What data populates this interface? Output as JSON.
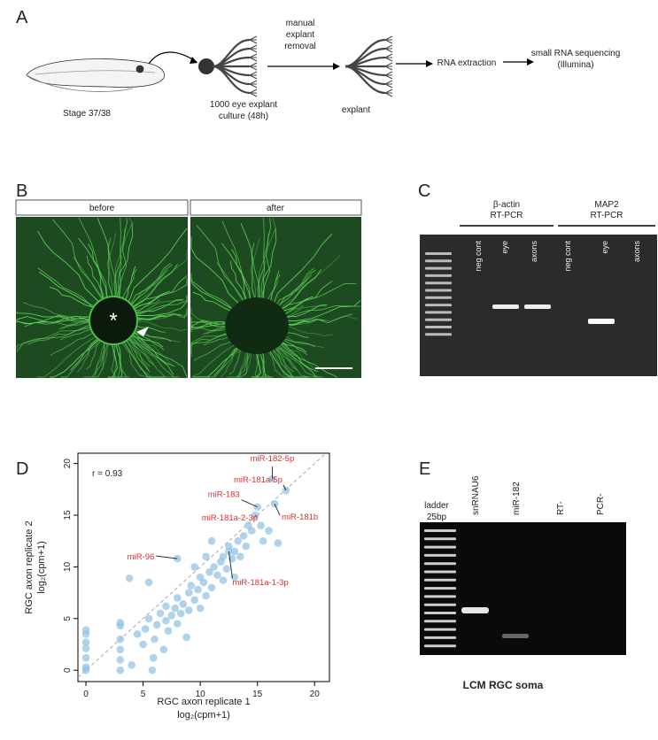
{
  "panel_a": {
    "label": "A",
    "stage": "Stage 37/38",
    "culture": [
      "1000 eye explant",
      "culture (48h)"
    ],
    "removal": [
      "manual",
      "explant",
      "removal"
    ],
    "explant": "explant",
    "extraction": "RNA extraction",
    "sequencing": [
      "small RNA sequencing",
      "(Illumina)"
    ]
  },
  "panel_b": {
    "label": "B",
    "before": "before",
    "after": "after"
  },
  "panel_c": {
    "label": "C",
    "groups": [
      {
        "name": [
          "β-actin",
          "RT-PCR"
        ],
        "lanes": [
          "neg cont",
          "eye",
          "axons"
        ]
      },
      {
        "name": [
          "MAP2",
          "RT-PCR"
        ],
        "lanes": [
          "neg cont",
          "eye",
          "axons"
        ]
      }
    ]
  },
  "chart_data": {
    "type": "scatter",
    "panel_label": "D",
    "stat_label": "r = 0.93",
    "x_label": [
      "RGC axon replicate 1",
      "log₂(cpm+1)"
    ],
    "y_label": [
      "RGC axon replicate 2",
      "log₂(cpm+1)"
    ],
    "color": "#8fc1e3",
    "x": [
      0,
      0,
      0,
      0,
      0,
      0,
      0,
      3,
      3,
      3,
      3,
      3,
      3,
      3.8,
      4,
      4.5,
      5,
      5.2,
      5.5,
      5.8,
      5.9,
      6,
      6.2,
      6.5,
      6.8,
      7,
      7,
      7.2,
      7.5,
      7.8,
      8,
      8,
      8.3,
      8.5,
      8.8,
      9,
      9,
      9.2,
      9.5,
      9.8,
      10,
      10,
      10.3,
      10.5,
      10.8,
      11,
      11.2,
      11.5,
      11.8,
      12,
      12,
      12.3,
      12.5,
      12.8,
      13,
      13,
      13.3,
      13.5,
      13.8,
      14,
      14.2,
      14.5,
      14.8,
      15,
      15.3,
      15.5,
      16,
      16.3,
      16.5,
      16.8,
      17.5,
      8,
      12.5,
      5.5,
      10.5,
      11,
      9.5
    ],
    "values": [
      0,
      0.3,
      1.2,
      2.1,
      2.7,
      3.5,
      3.9,
      0,
      1,
      2,
      3,
      4.3,
      4.6,
      8.9,
      0.5,
      3.5,
      2.5,
      4,
      5,
      0,
      1.2,
      3,
      4.4,
      5.5,
      2,
      4.8,
      6.2,
      3.8,
      5.3,
      6,
      4.5,
      7,
      5.5,
      6.4,
      3.2,
      7.5,
      5.8,
      8.2,
      6.8,
      7.8,
      9,
      6,
      8.5,
      7.2,
      9.5,
      8,
      10,
      9.2,
      10.5,
      8.7,
      11,
      9.8,
      12,
      10.8,
      11.5,
      9,
      12.5,
      11,
      13,
      12,
      14,
      13.5,
      15,
      15.8,
      14,
      12.5,
      13.5,
      18.5,
      16.1,
      12.3,
      17.4,
      10.8,
      11.5,
      8.5,
      11,
      12.5,
      10
    ],
    "annotations": [
      {
        "text": "miR-182-5p",
        "x": 16.3,
        "y": 18.5
      },
      {
        "text": "miR-181a-5p",
        "x": 17.5,
        "y": 17.4
      },
      {
        "text": "miR-183",
        "x": 15,
        "y": 15.8
      },
      {
        "text": "miR-181a-2-3p",
        "x": 14.8,
        "y": 15
      },
      {
        "text": "miR-181b",
        "x": 16.5,
        "y": 16.1
      },
      {
        "text": "miR-96",
        "x": 8,
        "y": 10.8
      },
      {
        "text": "miR-181a-1-3p",
        "x": 12.5,
        "y": 11.5
      }
    ],
    "annotation_color": "#d9312b",
    "xlim": [
      -0.7,
      21.3
    ],
    "ylim": [
      -1.1,
      21
    ],
    "xticks": [
      0,
      5,
      10,
      15,
      20
    ],
    "yticks": [
      0,
      5,
      10,
      15,
      20
    ]
  },
  "panel_e": {
    "label": "E",
    "ladder": [
      "ladder",
      "25bp"
    ],
    "lanes": [
      "snRNAU6",
      "miR-182",
      "RT-",
      "PCR-"
    ],
    "caption": "LCM RGC soma"
  }
}
